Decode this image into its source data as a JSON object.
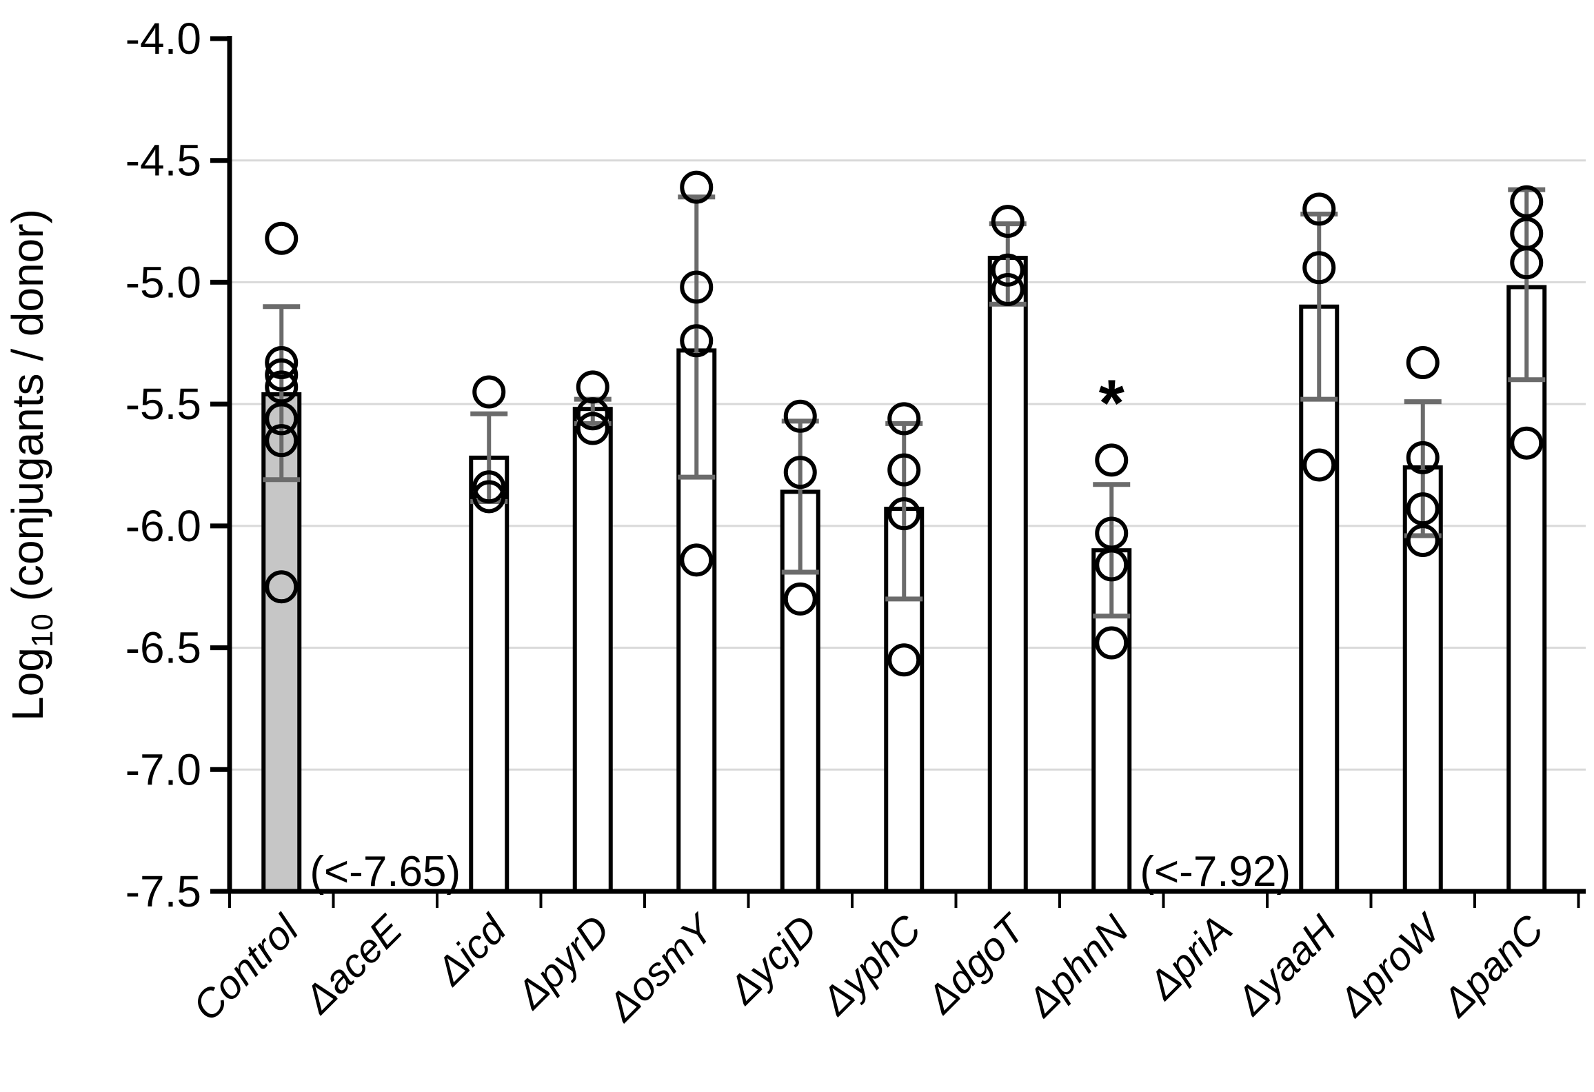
{
  "figure": {
    "background": "#ffffff"
  },
  "chart_data": {
    "type": "bar",
    "title": "",
    "xlabel": "",
    "ylabel": {
      "pre": "Log",
      "sub": "10",
      "post": " (conjugants / donor)"
    },
    "ylim": [
      -7.5,
      -4.0
    ],
    "grid": true,
    "legend": "none",
    "gridline_color": "#d9d9d9",
    "axis_color": "#000000",
    "error_bar_color": "#6b6b6b",
    "bar_stroke_color": "#000000",
    "bar_fill_default": "#ffffff",
    "control_fill": "#c6c6c6",
    "yticks": [
      {
        "label": "-4.0",
        "value": -4.0
      },
      {
        "label": "-4.5",
        "value": -4.5
      },
      {
        "label": "-5.0",
        "value": -5.0
      },
      {
        "label": "-5.5",
        "value": -5.5
      },
      {
        "label": "-6.0",
        "value": -6.0
      },
      {
        "label": "-6.5",
        "value": -6.5
      },
      {
        "label": "-7.0",
        "value": -7.0
      },
      {
        "label": "-7.5",
        "value": -7.5
      }
    ],
    "categories": [
      "Control",
      "ΔaceE",
      "Δicd",
      "ΔpyrD",
      "ΔosmY",
      "ΔycjD",
      "ΔyphC",
      "ΔdgoT",
      "ΔphnN",
      "ΔpriA",
      "ΔyaaH",
      "ΔproW",
      "ΔpanC"
    ],
    "series": [
      {
        "name": "Control",
        "mean": -5.46,
        "err_top": -5.1,
        "err_bottom": -5.81,
        "points": [
          -4.82,
          -5.33,
          -5.38,
          -5.43,
          -5.56,
          -5.65,
          -6.25
        ],
        "fill": "#c6c6c6",
        "annotation": null,
        "star": false
      },
      {
        "name": "ΔaceE",
        "mean": null,
        "err_top": null,
        "err_bottom": null,
        "points": [],
        "fill": "#ffffff",
        "annotation": "(<-7.65)",
        "star": false
      },
      {
        "name": "Δicd",
        "mean": -5.72,
        "err_top": -5.54,
        "err_bottom": -5.9,
        "points": [
          -5.45,
          -5.84,
          -5.88
        ],
        "fill": "#ffffff",
        "annotation": null,
        "star": false
      },
      {
        "name": "ΔpyrD",
        "mean": -5.52,
        "err_top": -5.48,
        "err_bottom": -5.58,
        "points": [
          -5.43,
          -5.54,
          -5.6
        ],
        "fill": "#ffffff",
        "annotation": null,
        "star": false
      },
      {
        "name": "ΔosmY",
        "mean": -5.28,
        "err_top": -4.65,
        "err_bottom": -5.8,
        "points": [
          -4.61,
          -5.02,
          -5.24,
          -6.14
        ],
        "fill": "#ffffff",
        "annotation": null,
        "star": false
      },
      {
        "name": "ΔycjD",
        "mean": -5.86,
        "err_top": -5.57,
        "err_bottom": -6.19,
        "points": [
          -5.55,
          -5.78,
          -6.3
        ],
        "fill": "#ffffff",
        "annotation": null,
        "star": false
      },
      {
        "name": "ΔyphC",
        "mean": -5.93,
        "err_top": -5.58,
        "err_bottom": -6.3,
        "points": [
          -5.56,
          -5.77,
          -5.95,
          -6.55
        ],
        "fill": "#ffffff",
        "annotation": null,
        "star": false
      },
      {
        "name": "ΔdgoT",
        "mean": -4.9,
        "err_top": -4.76,
        "err_bottom": -5.09,
        "points": [
          -4.75,
          -4.95,
          -5.03
        ],
        "fill": "#ffffff",
        "annotation": null,
        "star": false
      },
      {
        "name": "ΔphnN",
        "mean": -6.1,
        "err_top": -5.83,
        "err_bottom": -6.37,
        "points": [
          -5.73,
          -6.03,
          -6.16,
          -6.48
        ],
        "fill": "#ffffff",
        "annotation": null,
        "star": true
      },
      {
        "name": "ΔpriA",
        "mean": null,
        "err_top": null,
        "err_bottom": null,
        "points": [],
        "fill": "#ffffff",
        "annotation": "(<-7.92)",
        "star": false
      },
      {
        "name": "ΔyaaH",
        "mean": -5.1,
        "err_top": -4.72,
        "err_bottom": -5.48,
        "points": [
          -4.7,
          -4.94,
          -5.75
        ],
        "fill": "#ffffff",
        "annotation": null,
        "star": false
      },
      {
        "name": "ΔproW",
        "mean": -5.76,
        "err_top": -5.49,
        "err_bottom": -6.04,
        "points": [
          -5.33,
          -5.72,
          -5.93,
          -6.06
        ],
        "fill": "#ffffff",
        "annotation": null,
        "star": false
      },
      {
        "name": "ΔpanC",
        "mean": -5.02,
        "err_top": -4.62,
        "err_bottom": -5.4,
        "points": [
          -4.67,
          -4.8,
          -4.92,
          -5.66
        ],
        "fill": "#ffffff",
        "annotation": null,
        "star": false
      }
    ],
    "significance_marker": "*"
  }
}
